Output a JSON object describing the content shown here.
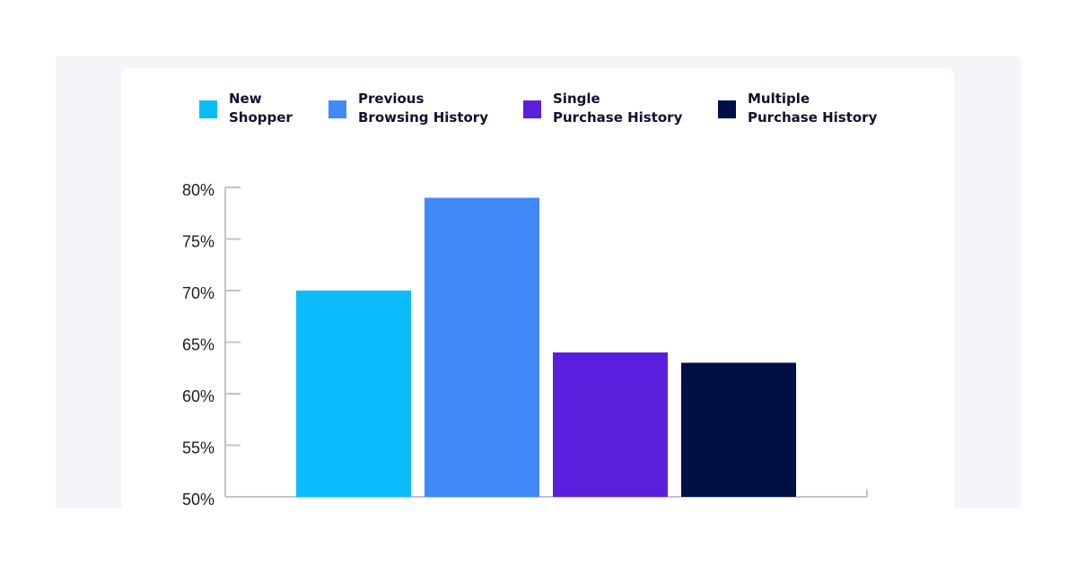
{
  "chart_data": {
    "type": "bar",
    "categories": [
      null
    ],
    "series": [
      {
        "name": "New\nShopper",
        "color": "#0bbcfc",
        "values": [
          70
        ]
      },
      {
        "name": "Previous\nBrowsing History",
        "color": "#4189f8",
        "values": [
          79
        ]
      },
      {
        "name": "Single\nPurchase History",
        "color": "#5a1fdd",
        "values": [
          64
        ]
      },
      {
        "name": "Multiple\nPurchase History",
        "color": "#000f45",
        "values": [
          63
        ]
      }
    ],
    "ylim": [
      50,
      80
    ],
    "yticks": [
      {
        "value": 50,
        "label": "50%"
      },
      {
        "value": 55,
        "label": "55%"
      },
      {
        "value": 60,
        "label": "60%"
      },
      {
        "value": 65,
        "label": "65%"
      },
      {
        "value": 70,
        "label": "70%"
      },
      {
        "value": 75,
        "label": "75%"
      },
      {
        "value": 80,
        "label": "80%"
      }
    ],
    "legend": "top"
  }
}
